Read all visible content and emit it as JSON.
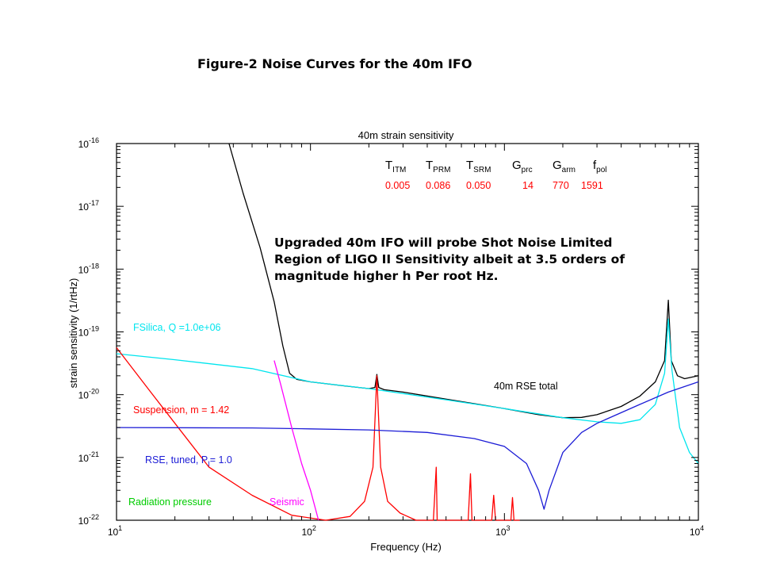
{
  "slide": {
    "title": "Figure-2 Noise Curves for the 40m IFO",
    "annotation_lines": [
      "Upgraded 40m IFO will probe Shot Noise Limited",
      "Region of LIGO II Sensitivity albeit at 3.5 orders of",
      "magnitude higher h Per root Hz."
    ]
  },
  "chart_data": {
    "type": "line",
    "title": "40m strain sensitivity",
    "xlabel": "Frequency (Hz)",
    "ylabel": "strain sensitivity (1/rtHz)",
    "xscale": "log",
    "yscale": "log",
    "xlim": [
      10,
      10000
    ],
    "ylim": [
      1e-22,
      1e-16
    ],
    "x_ticks": [
      {
        "base": "10",
        "exp": "1"
      },
      {
        "base": "10",
        "exp": "2"
      },
      {
        "base": "10",
        "exp": "3"
      },
      {
        "base": "10",
        "exp": "4"
      }
    ],
    "y_ticks": [
      {
        "base": "10",
        "exp": "-22"
      },
      {
        "base": "10",
        "exp": "-21"
      },
      {
        "base": "10",
        "exp": "-20"
      },
      {
        "base": "10",
        "exp": "-19"
      },
      {
        "base": "10",
        "exp": "-18"
      },
      {
        "base": "10",
        "exp": "-17"
      },
      {
        "base": "10",
        "exp": "-16"
      }
    ],
    "param_table": {
      "headers": [
        {
          "main": "T",
          "sub": "ITM"
        },
        {
          "main": "T",
          "sub": "PRM"
        },
        {
          "main": "T",
          "sub": "SRM"
        },
        {
          "main": "G",
          "sub": "prc"
        },
        {
          "main": "G",
          "sub": "arm"
        },
        {
          "main": "f",
          "sub": "pol"
        }
      ],
      "values": [
        "0.005",
        "0.086",
        "0.050",
        "14",
        "770",
        "1591"
      ]
    },
    "series": [
      {
        "name": "40m RSE total",
        "color": "#000000",
        "points": [
          [
            38,
            1e-16
          ],
          [
            45,
            1.6e-17
          ],
          [
            55,
            2.2e-18
          ],
          [
            65,
            3e-19
          ],
          [
            72,
            6e-20
          ],
          [
            78,
            2.2e-20
          ],
          [
            85,
            1.75e-20
          ],
          [
            100,
            1.6e-20
          ],
          [
            150,
            1.38e-20
          ],
          [
            200,
            1.25e-20
          ],
          [
            215,
            1.3e-20
          ],
          [
            220,
            2.1e-20
          ],
          [
            225,
            1.3e-20
          ],
          [
            240,
            1.2e-20
          ],
          [
            300,
            1.1e-20
          ],
          [
            500,
            8.5e-21
          ],
          [
            700,
            7.2e-21
          ],
          [
            1000,
            6e-21
          ],
          [
            1500,
            4.8e-21
          ],
          [
            2000,
            4.3e-21
          ],
          [
            2500,
            4.35e-21
          ],
          [
            3000,
            4.8e-21
          ],
          [
            4000,
            6.5e-21
          ],
          [
            5000,
            9.5e-21
          ],
          [
            6000,
            1.6e-20
          ],
          [
            6700,
            3.5e-20
          ],
          [
            7000,
            3.2e-19
          ],
          [
            7250,
            3.5e-20
          ],
          [
            7800,
            2e-20
          ],
          [
            8500,
            1.8e-20
          ],
          [
            10000,
            2e-20
          ]
        ]
      },
      {
        "name": "FSilica, Q =1.0e+06",
        "color": "#00e5ee",
        "points": [
          [
            10,
            4.5e-20
          ],
          [
            20,
            3.6e-20
          ],
          [
            50,
            2.6e-20
          ],
          [
            100,
            1.6e-20
          ],
          [
            200,
            1.25e-20
          ],
          [
            500,
            8.3e-21
          ],
          [
            1000,
            6e-21
          ],
          [
            2000,
            4.3e-21
          ],
          [
            3000,
            3.7e-21
          ],
          [
            4000,
            3.5e-21
          ],
          [
            5000,
            4e-21
          ],
          [
            6000,
            7e-21
          ],
          [
            6700,
            2.2e-20
          ],
          [
            7000,
            1.6e-19
          ],
          [
            7300,
            2.5e-20
          ],
          [
            8000,
            3e-21
          ],
          [
            9000,
            1.2e-21
          ],
          [
            10000,
            8e-22
          ]
        ]
      },
      {
        "name": "Suspension, m = 1.42",
        "color": "#ff0000",
        "points": [
          [
            10,
            5.6e-20
          ],
          [
            15,
            1.1e-20
          ],
          [
            20,
            3.5e-21
          ],
          [
            30,
            7e-22
          ],
          [
            50,
            2.5e-22
          ],
          [
            80,
            1.2e-22
          ],
          [
            120,
            1e-22
          ],
          [
            160,
            1.15e-22
          ],
          [
            190,
            2e-22
          ],
          [
            210,
            7e-22
          ],
          [
            220,
            2e-20
          ],
          [
            230,
            7e-22
          ],
          [
            250,
            2e-22
          ],
          [
            290,
            1.3e-22
          ],
          [
            350,
            1e-22
          ],
          [
            430,
            1e-22
          ],
          [
            445,
            7e-22
          ],
          [
            450,
            1e-22
          ],
          [
            650,
            1e-22
          ],
          [
            668,
            5.5e-22
          ],
          [
            680,
            1e-22
          ],
          [
            860,
            1e-22
          ],
          [
            880,
            2.5e-22
          ],
          [
            900,
            1e-22
          ],
          [
            1080,
            1e-22
          ],
          [
            1100,
            2.3e-22
          ],
          [
            1120,
            1e-22
          ],
          [
            1200,
            1e-22
          ]
        ]
      },
      {
        "name": "RSE, tuned, P",
        "sub": "I",
        "suffix": "= 1.0",
        "color": "#1c1cd6",
        "points": [
          [
            10,
            3e-21
          ],
          [
            50,
            2.95e-21
          ],
          [
            100,
            2.85e-21
          ],
          [
            200,
            2.75e-21
          ],
          [
            400,
            2.5e-21
          ],
          [
            700,
            2e-21
          ],
          [
            1000,
            1.5e-21
          ],
          [
            1300,
            8e-22
          ],
          [
            1500,
            3e-22
          ],
          [
            1600,
            1.5e-22
          ],
          [
            1700,
            3e-22
          ],
          [
            2000,
            1.2e-21
          ],
          [
            2500,
            2.5e-21
          ],
          [
            3000,
            3.5e-21
          ],
          [
            5000,
            7e-21
          ],
          [
            7000,
            1.1e-20
          ],
          [
            10000,
            1.6e-20
          ]
        ]
      },
      {
        "name": "Seismic",
        "color": "#ff00ff",
        "points": [
          [
            65,
            3.5e-20
          ],
          [
            70,
            1.5e-20
          ],
          [
            80,
            3e-21
          ],
          [
            90,
            8e-22
          ],
          [
            100,
            3e-22
          ],
          [
            110,
            1e-22
          ]
        ]
      },
      {
        "name": "Radiation pressure",
        "color": "#00cc00",
        "points": []
      }
    ]
  }
}
